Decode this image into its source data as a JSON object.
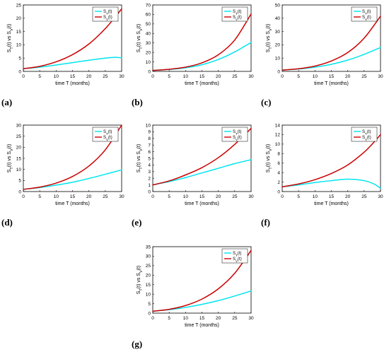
{
  "colors": {
    "s_t": "#00e5ee",
    "s_v": "#cc0000",
    "axis": "#000000"
  },
  "panels": [
    {
      "label": "(a)",
      "chart_data": {
        "type": "line",
        "xlabel": "time T (months)",
        "ylabel": "S_T(t) vs S_V(t)",
        "xlim": [
          0,
          30
        ],
        "ylim": [
          0,
          25
        ],
        "xticks": [
          0,
          5,
          10,
          15,
          20,
          25,
          30
        ],
        "yticks": [
          0,
          5,
          10,
          15,
          20,
          25
        ],
        "legend": [
          "S_T(t)",
          "S_V(t)"
        ],
        "legend_position": "top-right",
        "x": [
          0,
          5,
          10,
          15,
          20,
          25,
          28,
          30
        ],
        "series": [
          {
            "name": "S_T(t)",
            "values": [
              1.0,
              1.6,
              2.4,
              3.3,
              4.2,
              5.0,
              5.3,
              5.1
            ]
          },
          {
            "name": "S_V(t)",
            "values": [
              1.0,
              1.9,
              3.6,
              6.3,
              10.3,
              16.1,
              20.5,
              23.5
            ]
          }
        ]
      }
    },
    {
      "label": "(b)",
      "chart_data": {
        "type": "line",
        "xlabel": "time T (months)",
        "ylabel": "S_T(t) vs S_V(t)",
        "xlim": [
          0,
          30
        ],
        "ylim": [
          0,
          70
        ],
        "xticks": [
          0,
          5,
          10,
          15,
          20,
          25,
          30
        ],
        "yticks": [
          0,
          10,
          20,
          30,
          40,
          50,
          60,
          70
        ],
        "legend": [
          "S_T(t)",
          "S_V(t)"
        ],
        "legend_position": "top-right",
        "x": [
          0,
          5,
          10,
          15,
          20,
          25,
          30
        ],
        "series": [
          {
            "name": "S_T(t)",
            "values": [
              1.0,
              2.0,
              3.8,
              7.0,
              12.5,
              20.5,
              30.5
            ]
          },
          {
            "name": "S_V(t)",
            "values": [
              1.0,
              2.2,
              4.5,
              9.0,
              17.5,
              33.0,
              60.5
            ]
          }
        ]
      }
    },
    {
      "label": "(c)",
      "chart_data": {
        "type": "line",
        "xlabel": "time T (months)",
        "ylabel": "S_T(t) vs S_V(t)",
        "xlim": [
          0,
          30
        ],
        "ylim": [
          0,
          50
        ],
        "xticks": [
          0,
          5,
          10,
          15,
          20,
          25,
          30
        ],
        "yticks": [
          0,
          10,
          20,
          30,
          40,
          50
        ],
        "legend": [
          "S_T(t)",
          "S_V(t)"
        ],
        "legend_position": "top-right",
        "x": [
          0,
          5,
          10,
          15,
          20,
          25,
          30
        ],
        "series": [
          {
            "name": "S_T(t)",
            "values": [
              1.0,
              1.8,
              3.2,
              5.3,
              8.5,
              12.8,
              18.0
            ]
          },
          {
            "name": "S_V(t)",
            "values": [
              1.0,
              2.0,
              4.0,
              7.8,
              14.2,
              25.0,
              41.5
            ]
          }
        ]
      }
    },
    {
      "label": "(d)",
      "chart_data": {
        "type": "line",
        "xlabel": "time T (months)",
        "ylabel": "S_T(t) vs S_V(t)",
        "xlim": [
          0,
          30
        ],
        "ylim": [
          0,
          30
        ],
        "xticks": [
          0,
          5,
          10,
          15,
          20,
          25,
          30
        ],
        "yticks": [
          0,
          5,
          10,
          15,
          20,
          25,
          30
        ],
        "legend": [
          "S_T(t)",
          "S_V(t)"
        ],
        "legend_position": "top-right",
        "x": [
          0,
          5,
          10,
          15,
          20,
          25,
          30
        ],
        "series": [
          {
            "name": "S_T(t)",
            "values": [
              1.0,
              1.8,
              2.9,
              4.2,
              5.9,
              7.8,
              9.8
            ]
          },
          {
            "name": "S_V(t)",
            "values": [
              1.0,
              2.0,
              3.8,
              6.8,
              11.5,
              18.8,
              30.0
            ]
          }
        ]
      }
    },
    {
      "label": "(e)",
      "chart_data": {
        "type": "line",
        "xlabel": "time T (months)",
        "ylabel": "S_T(t) vs S_V(t)",
        "xlim": [
          0,
          30
        ],
        "ylim": [
          0,
          10
        ],
        "xticks": [
          0,
          5,
          10,
          15,
          20,
          25,
          30
        ],
        "yticks": [
          0,
          1,
          2,
          3,
          4,
          5,
          6,
          7,
          8,
          9,
          10
        ],
        "legend": [
          "S_T(t)",
          "S_V(t)"
        ],
        "legend_position": "top-right",
        "x": [
          0,
          5,
          10,
          15,
          20,
          25,
          30
        ],
        "series": [
          {
            "name": "S_T(t)",
            "values": [
              1.0,
              1.5,
              2.1,
              2.8,
              3.5,
              4.2,
              4.8
            ]
          },
          {
            "name": "S_V(t)",
            "values": [
              1.0,
              1.6,
              2.5,
              3.6,
              5.1,
              7.1,
              9.5
            ]
          }
        ]
      }
    },
    {
      "label": "(f)",
      "chart_data": {
        "type": "line",
        "xlabel": "time T (months)",
        "ylabel": "S_T(t) vs S_V(t)",
        "xlim": [
          0,
          30
        ],
        "ylim": [
          0,
          14
        ],
        "xticks": [
          0,
          5,
          10,
          15,
          20,
          25,
          30
        ],
        "yticks": [
          0,
          2,
          4,
          6,
          8,
          10,
          12,
          14
        ],
        "legend": [
          "S_T(t)",
          "S_V(t)"
        ],
        "legend_position": "top-right",
        "x": [
          0,
          5,
          10,
          15,
          20,
          25,
          28,
          30
        ],
        "series": [
          {
            "name": "S_T(t)",
            "values": [
              1.0,
              1.4,
              1.9,
              2.3,
              2.6,
              2.3,
              1.6,
              0.7
            ]
          },
          {
            "name": "S_V(t)",
            "values": [
              1.0,
              1.6,
              2.5,
              3.8,
              5.6,
              8.3,
              10.4,
              12.0
            ]
          }
        ]
      }
    },
    {
      "label": "(g)",
      "chart_data": {
        "type": "line",
        "xlabel": "time T (months)",
        "ylabel": "S_T(t) vs S_V(t)",
        "xlim": [
          0,
          30
        ],
        "ylim": [
          0,
          35
        ],
        "xticks": [
          0,
          5,
          10,
          15,
          20,
          25,
          30
        ],
        "yticks": [
          0,
          5,
          10,
          15,
          20,
          25,
          30,
          35
        ],
        "legend": [
          "S_T(t)",
          "S_V(t)"
        ],
        "legend_position": "top-right",
        "x": [
          0,
          5,
          10,
          15,
          20,
          25,
          30
        ],
        "series": [
          {
            "name": "S_T(t)",
            "values": [
              1.0,
              1.8,
              3.0,
              4.6,
              6.6,
              9.0,
              11.7
            ]
          },
          {
            "name": "S_V(t)",
            "values": [
              1.0,
              2.0,
              4.0,
              7.4,
              12.8,
              21.0,
              33.0
            ]
          }
        ]
      }
    }
  ]
}
